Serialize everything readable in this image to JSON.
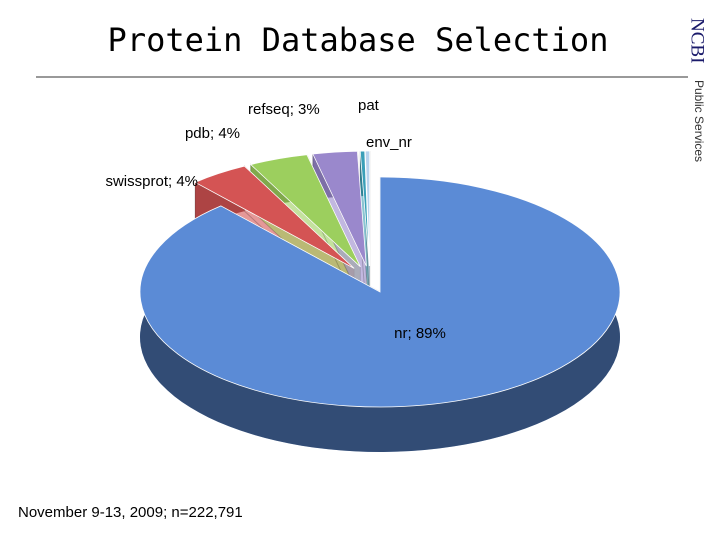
{
  "chart_data": {
    "type": "pie",
    "title": "Protein Database Selection",
    "subtitle": "November 9-13, 2009; n=222,791",
    "categories": [
      "nr",
      "swissprot",
      "pdb",
      "refseq",
      "pat",
      "env_nr"
    ],
    "values": [
      89,
      4,
      4,
      3,
      0.3,
      0.3
    ],
    "value_labels": [
      "nr; 89%",
      "swissprot; 4%",
      "pdb; 4%",
      "refseq; 3%",
      null,
      null
    ],
    "colors": [
      "#5b8bd6",
      "#d45454",
      "#9ccf5e",
      "#9a88cc",
      "#3a9fb8",
      "#b7d3ee"
    ]
  },
  "logo": {
    "name": "NCBI",
    "text": "Public Services"
  }
}
